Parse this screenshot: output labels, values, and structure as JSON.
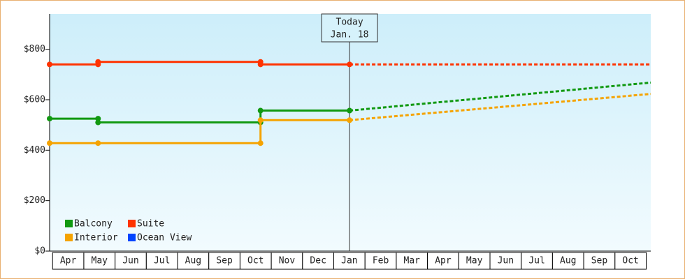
{
  "chart_data": {
    "type": "line",
    "xlim": [
      -0.55,
      18.69
    ],
    "xticks": [
      {
        "value": 0,
        "label": "Apr"
      },
      {
        "value": 1,
        "label": "May"
      },
      {
        "value": 2,
        "label": "Jun"
      },
      {
        "value": 3,
        "label": "Jul"
      },
      {
        "value": 4,
        "label": "Aug"
      },
      {
        "value": 5,
        "label": "Sep"
      },
      {
        "value": 6,
        "label": "Oct"
      },
      {
        "value": 7,
        "label": "Nov"
      },
      {
        "value": 8,
        "label": "Dec"
      },
      {
        "value": 9,
        "label": "Jan"
      },
      {
        "value": 10,
        "label": "Feb"
      },
      {
        "value": 11,
        "label": "Mar"
      },
      {
        "value": 12,
        "label": "Apr"
      },
      {
        "value": 13,
        "label": "May"
      },
      {
        "value": 14,
        "label": "Jun"
      },
      {
        "value": 15,
        "label": "Jul"
      },
      {
        "value": 16,
        "label": "Aug"
      },
      {
        "value": 17,
        "label": "Sep"
      },
      {
        "value": 18,
        "label": "Oct"
      }
    ],
    "ylim": [
      0,
      940
    ],
    "yticks": [
      {
        "value": 0,
        "label": "$0"
      },
      {
        "value": 200,
        "label": "$200"
      },
      {
        "value": 400,
        "label": "$400"
      },
      {
        "value": 600,
        "label": "$600"
      },
      {
        "value": 800,
        "label": "$800"
      }
    ],
    "annotation": {
      "x": 9.05,
      "lines": [
        "Today",
        "Jan. 18"
      ]
    },
    "series": [
      {
        "name": "Balcony",
        "color": "#119911",
        "x": [
          -0.55,
          1,
          1,
          6.2,
          6.2,
          9.05
        ],
        "values": [
          525,
          525,
          510,
          510,
          557,
          557
        ],
        "forecast_x": [
          9.05,
          18.69
        ],
        "forecast_values": [
          557,
          668
        ]
      },
      {
        "name": "Suite",
        "color": "#ff3300",
        "x": [
          -0.55,
          1,
          1,
          6.2,
          6.2,
          9.05
        ],
        "values": [
          740,
          740,
          750,
          750,
          740,
          740
        ],
        "forecast_x": [
          9.05,
          18.69
        ],
        "forecast_values": [
          740,
          740
        ]
      },
      {
        "name": "Interior",
        "color": "#f5a300",
        "x": [
          -0.55,
          1,
          6.2,
          6.2,
          9.05
        ],
        "values": [
          428,
          428,
          428,
          519,
          519
        ],
        "forecast_x": [
          9.05,
          18.69
        ],
        "forecast_values": [
          519,
          623
        ]
      },
      {
        "name": "Ocean View",
        "color": "#0044ff",
        "x": [],
        "values": [],
        "forecast_x": [],
        "forecast_values": []
      }
    ]
  }
}
